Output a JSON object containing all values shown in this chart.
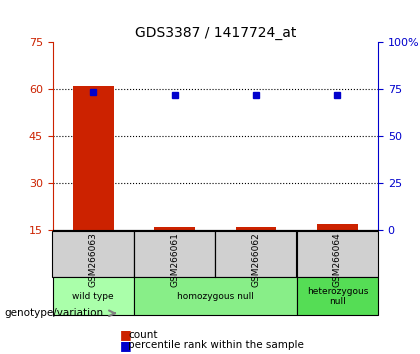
{
  "title": "GDS3387 / 1417724_at",
  "samples": [
    "GSM266063",
    "GSM266061",
    "GSM266062",
    "GSM266064"
  ],
  "bar_values": [
    61,
    16,
    16,
    17
  ],
  "bar_bottom": 15,
  "percentile_values": [
    73.5,
    72,
    72,
    72
  ],
  "bar_color": "#cc2200",
  "dot_color": "#0000cc",
  "ylim_left": [
    15,
    75
  ],
  "ylim_right": [
    0,
    100
  ],
  "yticks_left": [
    15,
    30,
    45,
    60,
    75
  ],
  "yticks_right": [
    0,
    25,
    50,
    75,
    100
  ],
  "ytick_labels_right": [
    "0",
    "25",
    "50",
    "75",
    "100%"
  ],
  "gridlines": [
    30,
    45,
    60
  ],
  "groups": [
    {
      "label": "wild type",
      "samples": [
        "GSM266063"
      ],
      "color": "#aaffaa"
    },
    {
      "label": "homozygous null",
      "samples": [
        "GSM266061",
        "GSM266062"
      ],
      "color": "#88ee88"
    },
    {
      "label": "heterozygous\nnull",
      "samples": [
        "GSM266064"
      ],
      "color": "#55dd55"
    }
  ],
  "xlabel_left": "genotype/variation",
  "background_color": "#ffffff",
  "plot_bg_color": "#ffffff",
  "sample_label_color": "#000000",
  "left_tick_color": "#cc2200",
  "right_tick_color": "#0000cc"
}
